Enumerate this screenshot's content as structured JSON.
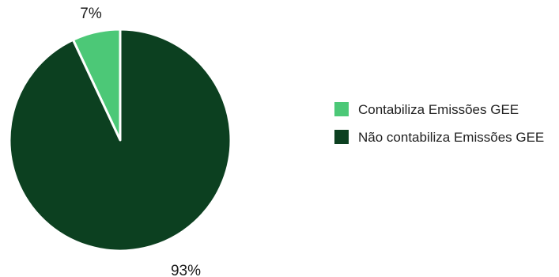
{
  "chart_data": {
    "type": "pie",
    "categories": [
      "Contabiliza Emissões GEE",
      "Não contabiliza Emissões GEE"
    ],
    "values": [
      7,
      93
    ],
    "data_labels": [
      "7%",
      "93%"
    ],
    "colors": [
      "#4cc877",
      "#0c4020"
    ],
    "legend_position": "right"
  }
}
